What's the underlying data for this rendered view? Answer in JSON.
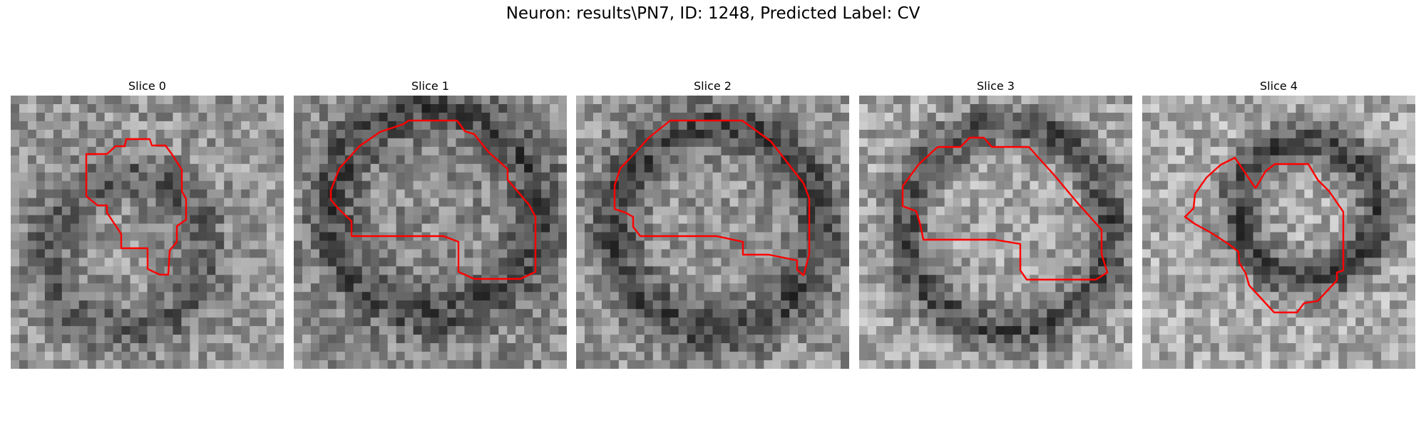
{
  "figure": {
    "title": "Neuron: results\\PN7, ID: 1248, Predicted Label: CV"
  },
  "panels": [
    {
      "title": "Slice 0"
    },
    {
      "title": "Slice 1"
    },
    {
      "title": "Slice 2"
    },
    {
      "title": "Slice 3"
    },
    {
      "title": "Slice 4"
    }
  ],
  "colors": {
    "contour": "#ff0000",
    "image_background": "#808080"
  }
}
